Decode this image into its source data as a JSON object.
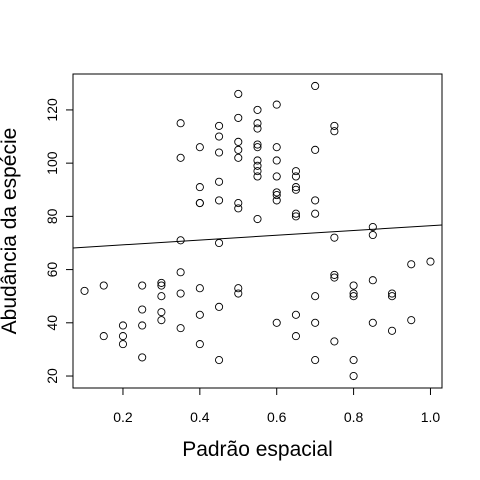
{
  "chart_data": {
    "type": "scatter",
    "title": "",
    "xlabel": "Padrão espacial",
    "ylabel": "Abudância da espécie",
    "xlim": [
      0.07,
      1.03
    ],
    "ylim": [
      15.5,
      133.5
    ],
    "xticks": [
      "0.2",
      "0.4",
      "0.6",
      "0.8",
      "1.0"
    ],
    "yticks": [
      "20",
      "40",
      "60",
      "80",
      "100",
      "120"
    ],
    "grid": false,
    "marker": "open-circle",
    "regression_line": {
      "intercept": 67.5,
      "slope": 9.0
    },
    "points": [
      [
        0.1,
        52
      ],
      [
        0.15,
        54
      ],
      [
        0.15,
        35
      ],
      [
        0.2,
        39
      ],
      [
        0.2,
        35
      ],
      [
        0.2,
        32
      ],
      [
        0.25,
        54
      ],
      [
        0.25,
        45
      ],
      [
        0.25,
        39
      ],
      [
        0.25,
        27
      ],
      [
        0.3,
        55
      ],
      [
        0.3,
        54
      ],
      [
        0.3,
        50
      ],
      [
        0.3,
        44
      ],
      [
        0.3,
        41
      ],
      [
        0.35,
        115
      ],
      [
        0.35,
        102
      ],
      [
        0.35,
        71
      ],
      [
        0.35,
        59
      ],
      [
        0.35,
        51
      ],
      [
        0.35,
        38
      ],
      [
        0.4,
        106
      ],
      [
        0.4,
        91
      ],
      [
        0.4,
        85
      ],
      [
        0.4,
        85
      ],
      [
        0.4,
        53
      ],
      [
        0.4,
        43
      ],
      [
        0.4,
        32
      ],
      [
        0.45,
        114
      ],
      [
        0.45,
        110
      ],
      [
        0.45,
        104
      ],
      [
        0.45,
        93
      ],
      [
        0.45,
        86
      ],
      [
        0.45,
        70
      ],
      [
        0.45,
        46
      ],
      [
        0.45,
        26
      ],
      [
        0.5,
        126
      ],
      [
        0.5,
        117
      ],
      [
        0.5,
        108
      ],
      [
        0.5,
        105
      ],
      [
        0.5,
        102
      ],
      [
        0.5,
        85
      ],
      [
        0.5,
        83
      ],
      [
        0.5,
        53
      ],
      [
        0.5,
        51
      ],
      [
        0.55,
        120
      ],
      [
        0.55,
        115
      ],
      [
        0.55,
        113
      ],
      [
        0.55,
        107
      ],
      [
        0.55,
        106
      ],
      [
        0.55,
        101
      ],
      [
        0.55,
        99
      ],
      [
        0.55,
        97
      ],
      [
        0.55,
        95
      ],
      [
        0.55,
        79
      ],
      [
        0.6,
        122
      ],
      [
        0.6,
        106
      ],
      [
        0.6,
        101
      ],
      [
        0.6,
        95
      ],
      [
        0.6,
        89
      ],
      [
        0.6,
        88
      ],
      [
        0.6,
        86
      ],
      [
        0.6,
        40
      ],
      [
        0.65,
        97
      ],
      [
        0.65,
        95
      ],
      [
        0.65,
        91
      ],
      [
        0.65,
        90
      ],
      [
        0.65,
        81
      ],
      [
        0.65,
        80
      ],
      [
        0.65,
        43
      ],
      [
        0.65,
        35
      ],
      [
        0.7,
        129
      ],
      [
        0.7,
        105
      ],
      [
        0.7,
        86
      ],
      [
        0.7,
        81
      ],
      [
        0.7,
        50
      ],
      [
        0.7,
        40
      ],
      [
        0.7,
        26
      ],
      [
        0.75,
        114
      ],
      [
        0.75,
        112
      ],
      [
        0.75,
        72
      ],
      [
        0.75,
        58
      ],
      [
        0.75,
        57
      ],
      [
        0.75,
        33
      ],
      [
        0.8,
        54
      ],
      [
        0.8,
        51
      ],
      [
        0.8,
        50
      ],
      [
        0.8,
        26
      ],
      [
        0.8,
        20
      ],
      [
        0.85,
        76
      ],
      [
        0.85,
        73
      ],
      [
        0.85,
        56
      ],
      [
        0.85,
        40
      ],
      [
        0.9,
        51
      ],
      [
        0.9,
        50
      ],
      [
        0.9,
        37
      ],
      [
        0.95,
        62
      ],
      [
        0.95,
        41
      ],
      [
        1.0,
        63
      ]
    ]
  }
}
